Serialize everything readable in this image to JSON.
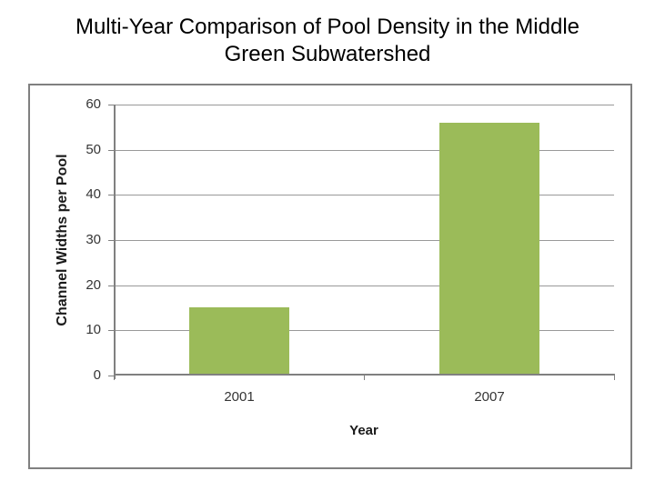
{
  "slide": {
    "title_lines": [
      "Multi-Year Comparison of Pool Density in the Middle",
      "Green Subwatershed"
    ]
  },
  "chart_data": {
    "type": "bar",
    "title": "Multi-Year Comparison of Pool Density in the Middle Green Subwatershed",
    "categories": [
      "2001",
      "2007"
    ],
    "values": [
      15,
      56
    ],
    "xlabel": "Year",
    "ylabel": "Channel Widths per Pool",
    "ylim": [
      0,
      60
    ],
    "yticks": [
      0,
      10,
      20,
      30,
      40,
      50,
      60
    ],
    "grid": "horizontal",
    "legend": "none",
    "colors": {
      "bar": "#9BBB59",
      "gridline": "#999999",
      "axis": "#808080",
      "frame_border": "#808080",
      "tick_label": "#353535",
      "title": "#000000",
      "background": "#FFFFFF"
    }
  }
}
